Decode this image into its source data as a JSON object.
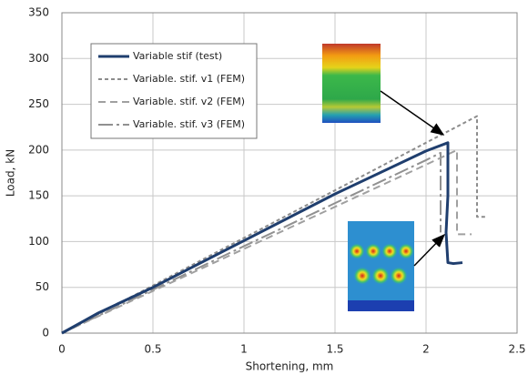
{
  "chart_data": {
    "type": "line",
    "x_label": "Shortening, mm",
    "y_label": "Load, kN",
    "xlim": [
      0,
      2.5
    ],
    "xticks": [
      0,
      0.5,
      1,
      1.5,
      2,
      2.5
    ],
    "ylim": [
      0,
      350
    ],
    "yticks": [
      0,
      50,
      100,
      150,
      200,
      250,
      300,
      350
    ],
    "grid": true,
    "legend": "upper left",
    "series": [
      {
        "name": "Variable stif (test)",
        "color": "#1f3e6e",
        "dash": "none",
        "width": 3,
        "x": [
          0,
          0.1,
          0.2,
          0.5,
          1,
          1.5,
          2,
          2.12,
          2.12,
          2.11,
          2.12,
          2.15,
          2.2
        ],
        "values": [
          0,
          11,
          22,
          50,
          101,
          152,
          199,
          208,
          150,
          110,
          77,
          76,
          77
        ]
      },
      {
        "name": "Variable. stif. v1 (FEM)",
        "color": "#8c8c8c",
        "dash": "4,3",
        "width": 2,
        "x": [
          0,
          0.5,
          1,
          1.5,
          2,
          2.28,
          2.28,
          2.33
        ],
        "values": [
          0,
          52,
          104,
          156,
          208,
          237,
          127,
          127
        ]
      },
      {
        "name": "Variable. stif. v2 (FEM)",
        "color": "#a0a0a0",
        "dash": "8,5",
        "width": 2,
        "x": [
          0,
          1,
          2,
          2.17,
          2.17,
          2.25
        ],
        "values": [
          0,
          92,
          184,
          200,
          108,
          108
        ]
      },
      {
        "name": "Variable. stif. v3 (FEM)",
        "color": "#909090",
        "dash": "16,4,3,4",
        "width": 2,
        "x": [
          0,
          1,
          2,
          2.08,
          2.08
        ],
        "values": [
          0,
          95,
          189,
          197,
          110
        ]
      }
    ]
  }
}
